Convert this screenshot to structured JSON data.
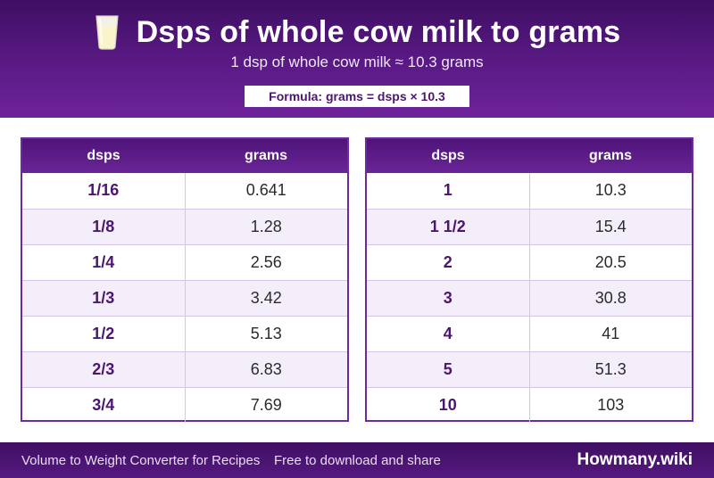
{
  "header": {
    "title": "Dsps of whole cow milk to grams",
    "subtitle": "1 dsp of whole cow milk ≈ 10.3 grams",
    "formula": "Formula: grams = dsps × 10.3",
    "icon": "milk-glass-icon"
  },
  "tables": [
    {
      "col_key": "dsps",
      "col_val": "grams",
      "rows": [
        {
          "k": "1/16",
          "v": "0.641"
        },
        {
          "k": "1/8",
          "v": "1.28"
        },
        {
          "k": "1/4",
          "v": "2.56"
        },
        {
          "k": "1/3",
          "v": "3.42"
        },
        {
          "k": "1/2",
          "v": "5.13"
        },
        {
          "k": "2/3",
          "v": "6.83"
        },
        {
          "k": "3/4",
          "v": "7.69"
        }
      ]
    },
    {
      "col_key": "dsps",
      "col_val": "grams",
      "rows": [
        {
          "k": "1",
          "v": "10.3"
        },
        {
          "k": "1 1/2",
          "v": "15.4"
        },
        {
          "k": "2",
          "v": "20.5"
        },
        {
          "k": "3",
          "v": "30.8"
        },
        {
          "k": "4",
          "v": "41"
        },
        {
          "k": "5",
          "v": "51.3"
        },
        {
          "k": "10",
          "v": "103"
        }
      ]
    }
  ],
  "footer": {
    "left": "Volume to Weight Converter for Recipes",
    "middle": "Free to download and share",
    "brand": "Howmany.wiki"
  },
  "colors": {
    "header_bg": "#4a1670",
    "accent": "#6d2aa0",
    "row_alt": "#f4eefa"
  }
}
